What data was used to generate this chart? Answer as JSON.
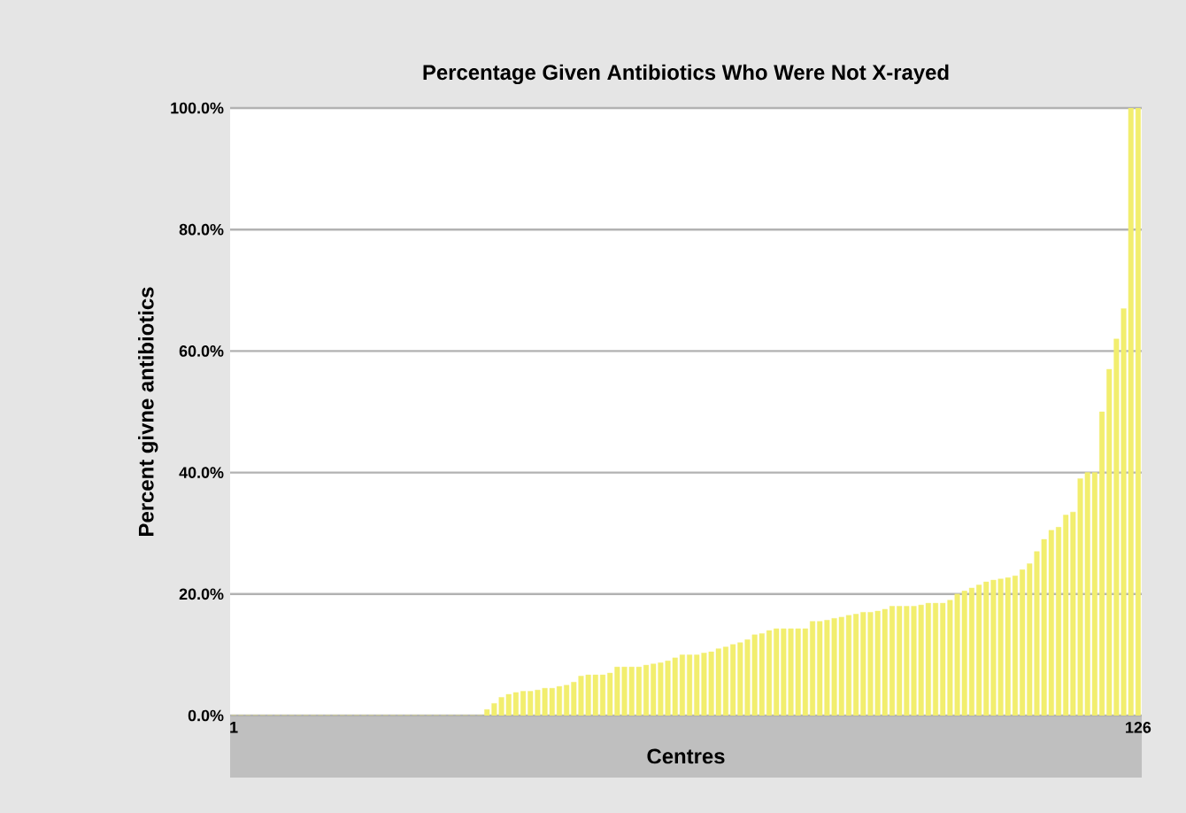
{
  "chart_data": {
    "type": "bar",
    "title": "Percentage Given Antibiotics Who Were Not X-rayed",
    "xlabel": "Centres",
    "ylabel": "Percent givne antibiotics",
    "categories": [
      "1",
      null,
      null,
      null,
      null,
      null,
      null,
      null,
      null,
      null,
      null,
      null,
      null,
      null,
      null,
      null,
      null,
      null,
      null,
      null,
      null,
      null,
      null,
      null,
      null,
      null,
      null,
      null,
      null,
      null,
      null,
      null,
      null,
      null,
      null,
      null,
      null,
      null,
      null,
      null,
      null,
      null,
      null,
      null,
      null,
      null,
      null,
      null,
      null,
      null,
      null,
      null,
      null,
      null,
      null,
      null,
      null,
      null,
      null,
      null,
      null,
      null,
      null,
      null,
      null,
      null,
      null,
      null,
      null,
      null,
      null,
      null,
      null,
      null,
      null,
      null,
      null,
      null,
      null,
      null,
      null,
      null,
      null,
      null,
      null,
      null,
      null,
      null,
      null,
      null,
      null,
      null,
      null,
      null,
      null,
      null,
      null,
      null,
      null,
      null,
      null,
      null,
      null,
      null,
      null,
      null,
      null,
      null,
      null,
      null,
      null,
      null,
      null,
      null,
      null,
      null,
      null,
      null,
      null,
      null,
      null,
      null,
      null,
      null,
      null,
      "126"
    ],
    "values": [
      0,
      0,
      0,
      0,
      0,
      0,
      0,
      0,
      0,
      0,
      0,
      0,
      0,
      0,
      0,
      0,
      0,
      0,
      0,
      0,
      0,
      0,
      0,
      0,
      0,
      0,
      0,
      0,
      0,
      0,
      0,
      0,
      0,
      0,
      0,
      1,
      2,
      3,
      3.5,
      3.8,
      4,
      4,
      4.2,
      4.5,
      4.5,
      4.8,
      5,
      5.5,
      6.5,
      6.7,
      6.7,
      6.7,
      7,
      8,
      8,
      8,
      8,
      8.3,
      8.5,
      8.7,
      9,
      9.5,
      10,
      10,
      10,
      10.3,
      10.5,
      11,
      11.3,
      11.7,
      12,
      12.5,
      13.3,
      13.5,
      14,
      14.3,
      14.3,
      14.3,
      14.3,
      14.3,
      15.5,
      15.5,
      15.7,
      16,
      16.2,
      16.5,
      16.7,
      17,
      17,
      17.2,
      17.5,
      18,
      18,
      18,
      18,
      18.2,
      18.5,
      18.5,
      18.5,
      19,
      20,
      20.5,
      21,
      21.5,
      22,
      22.3,
      22.5,
      22.7,
      23,
      24,
      25,
      27,
      29,
      30.5,
      31,
      33,
      33.5,
      39,
      40,
      40,
      50,
      57,
      62,
      67,
      100,
      100
    ],
    "color": "#f2ee6e",
    "ylim": [
      0,
      100
    ],
    "yticks": [
      {
        "value": 0,
        "label": "0.0%"
      },
      {
        "value": 20,
        "label": "20.0%"
      },
      {
        "value": 40,
        "label": "40.0%"
      },
      {
        "value": 60,
        "label": "60.0%"
      },
      {
        "value": 80,
        "label": "80.0%"
      },
      {
        "value": 100,
        "label": "100.0%"
      }
    ],
    "grid": "y"
  }
}
